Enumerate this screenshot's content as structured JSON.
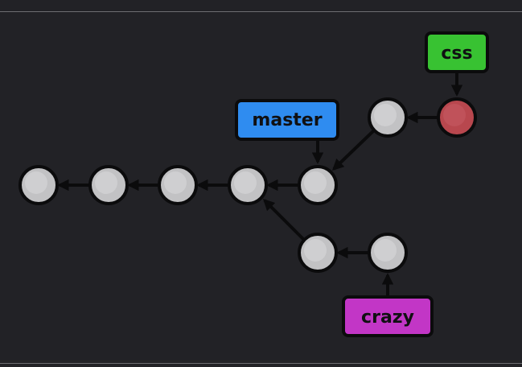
{
  "diagram": {
    "branches": {
      "master": {
        "label": "master",
        "color": "#2f8cf0"
      },
      "css": {
        "label": "css",
        "color": "#38c232"
      },
      "crazy": {
        "label": "crazy",
        "color": "#c236c6"
      }
    },
    "colors": {
      "background": "#222226",
      "commit_fill": "#c2c2c4",
      "commit_head_fill": "#b8474e",
      "outline": "#0b0b0c",
      "label_text": "#101012"
    }
  }
}
